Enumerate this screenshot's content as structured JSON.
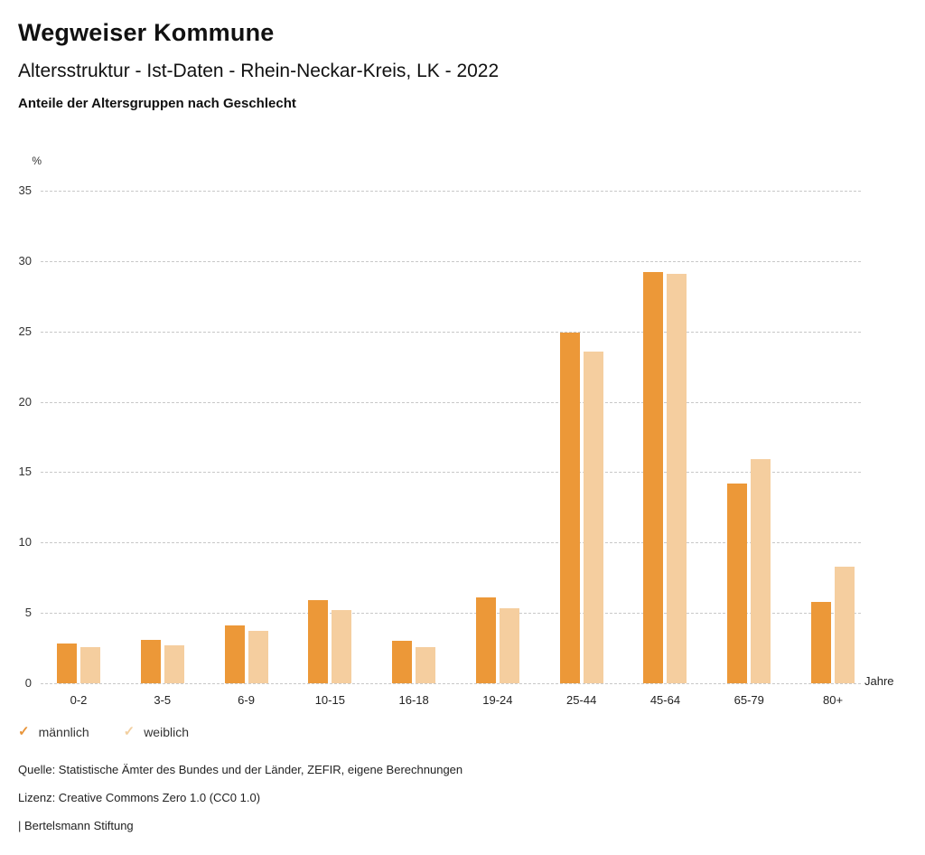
{
  "header": {
    "app_title": "Wegweiser Kommune",
    "report_title": "Altersstruktur - Ist-Daten - Rhein-Neckar-Kreis, LK - 2022",
    "chart_subtitle": "Anteile der Altersgruppen nach Geschlecht"
  },
  "chart_data": {
    "type": "bar",
    "title": "Anteile der Altersgruppen nach Geschlecht",
    "xlabel": "Jahre",
    "ylabel": "%",
    "categories": [
      "0-2",
      "3-5",
      "6-9",
      "10-15",
      "16-18",
      "19-24",
      "25-44",
      "45-64",
      "65-79",
      "80+"
    ],
    "series": [
      {
        "name": "männlich",
        "color": "#EC9838",
        "values": [
          2.8,
          3.1,
          4.1,
          5.9,
          3.0,
          6.1,
          24.9,
          29.2,
          14.2,
          5.8
        ]
      },
      {
        "name": "weiblich",
        "color": "#F5CE9F",
        "values": [
          2.6,
          2.7,
          3.7,
          5.2,
          2.6,
          5.3,
          23.6,
          29.1,
          15.9,
          8.3
        ]
      }
    ],
    "ylim": [
      0,
      35
    ],
    "ytick_step": 5,
    "yticks": [
      0,
      5,
      10,
      15,
      20,
      25,
      30,
      35
    ],
    "grid": "horizontal-dashed",
    "legend_position": "bottom-left"
  },
  "legend": {
    "check_icon": "✓",
    "items": [
      {
        "label": "männlich",
        "color": "#E8953B",
        "checked": true
      },
      {
        "label": "weiblich",
        "color": "#F2CFA0",
        "checked": true
      }
    ]
  },
  "footer": {
    "source": "Quelle: Statistische Ämter des Bundes und der Länder, ZEFIR, eigene Berechnungen",
    "license": "Lizenz: Creative Commons Zero 1.0 (CC0 1.0)",
    "attribution": "| Bertelsmann Stiftung"
  },
  "colors": {
    "maennlich_bar": "#EC9838",
    "weiblich_bar": "#F5CE9F",
    "gridline": "#c8c8c8",
    "text": "#1a1a1a"
  }
}
